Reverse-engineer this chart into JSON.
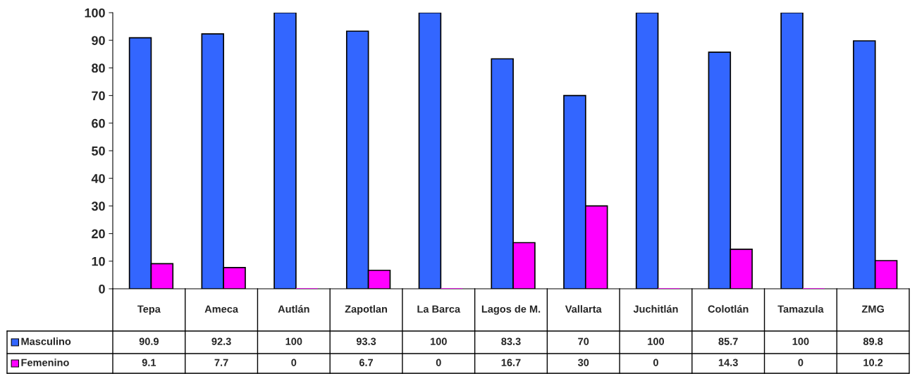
{
  "chart_data": {
    "type": "bar",
    "categories": [
      "Tepa",
      "Ameca",
      "Autlán",
      "Zapotlan",
      "La Barca",
      "Lagos de M.",
      "Vallarta",
      "Juchitlán",
      "Colotlán",
      "Tamazula",
      "ZMG"
    ],
    "series": [
      {
        "name": "Masculino",
        "color": "#3366ff",
        "values": [
          90.9,
          92.3,
          100,
          93.3,
          100,
          83.3,
          70,
          100,
          85.7,
          100,
          89.8
        ]
      },
      {
        "name": "Femenino",
        "color": "#ff00ff",
        "values": [
          9.1,
          7.7,
          0,
          6.7,
          0,
          16.7,
          30,
          0,
          14.3,
          0,
          10.2
        ]
      }
    ],
    "ylim": [
      0,
      100
    ],
    "yticks": [
      0,
      10,
      20,
      30,
      40,
      50,
      60,
      70,
      80,
      90,
      100
    ],
    "grid": false,
    "data_labels": true,
    "legend": "bottom left"
  }
}
